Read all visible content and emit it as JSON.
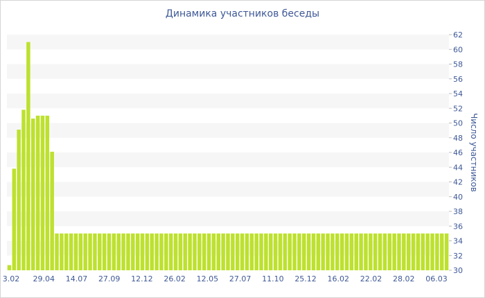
{
  "chart_data": {
    "type": "bar",
    "title": "Динамика участников беседы",
    "ylabel": "Число участников",
    "xlabel": "",
    "ylim": [
      30,
      62
    ],
    "y_ticks": [
      30,
      32,
      34,
      36,
      38,
      40,
      42,
      44,
      46,
      48,
      50,
      52,
      54,
      56,
      58,
      60,
      62
    ],
    "y_axis_position": "right",
    "grid": "alternating horizontal bands",
    "bar_color": "#bde12e",
    "x_tick_labels": [
      "3.02",
      "29.04",
      "14.07",
      "27.09",
      "12.12",
      "26.02",
      "12.05",
      "27.07",
      "11.10",
      "25.12",
      "16.02",
      "22.02",
      "28.02",
      "06.03"
    ],
    "values": [
      30.7,
      43.8,
      49.1,
      51.8,
      61,
      50.6,
      51,
      51,
      51,
      46.1,
      35,
      35,
      35,
      35,
      35,
      35,
      35,
      35,
      35,
      35,
      35,
      35,
      35,
      35,
      35,
      35,
      35,
      35,
      35,
      35,
      35,
      35,
      35,
      35,
      35,
      35,
      35,
      35,
      35,
      35,
      35,
      35,
      35,
      35,
      35,
      35,
      35,
      35,
      35,
      35,
      35,
      35,
      35,
      35,
      35,
      35,
      35,
      35,
      35,
      35,
      35,
      35,
      35,
      35,
      35,
      35,
      35,
      35,
      35,
      35,
      35,
      35,
      35,
      35,
      35,
      35,
      35,
      35,
      35,
      35,
      35,
      35,
      35,
      35,
      35,
      35,
      35,
      35,
      35,
      35,
      35,
      35,
      35
    ]
  }
}
